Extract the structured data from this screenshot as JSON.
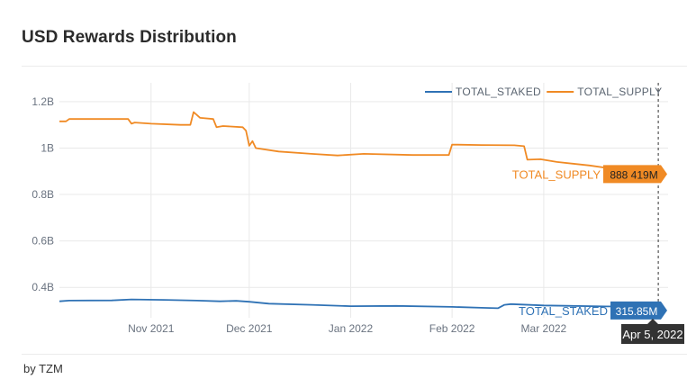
{
  "title": "USD Rewards Distribution",
  "footer": "by TZM",
  "colors": {
    "staked": "#2f72b5",
    "supply": "#f08a24",
    "grid": "#e9e9e9"
  },
  "hover": {
    "date_label": "Apr 5, 2022",
    "supply_label": "888 419M",
    "staked_label": "315.85M",
    "supply_series_label": "TOTAL_SUPPLY",
    "staked_series_label": "TOTAL_STAKED"
  },
  "chart_data": {
    "type": "line",
    "title": "USD Rewards Distribution",
    "xlabel": "",
    "ylabel": "",
    "x_range": [
      "2021-10-04",
      "2022-04-08"
    ],
    "ylim": [
      300000000.0,
      1250000000.0
    ],
    "y_ticks": [
      400000000.0,
      600000000.0,
      800000000.0,
      1000000000.0,
      1200000000.0
    ],
    "y_tick_labels": [
      "0.4B",
      "0.6B",
      "0.8B",
      "1B",
      "1.2B"
    ],
    "x_ticks": [
      "2021-11-01",
      "2021-12-01",
      "2022-01-01",
      "2022-02-01",
      "2022-03-01"
    ],
    "x_tick_labels": [
      "Nov 2021",
      "Dec 2021",
      "Jan 2022",
      "Feb 2022",
      "Mar 2022"
    ],
    "grid": true,
    "legend_position": "top-right",
    "series": [
      {
        "name": "TOTAL_STAKED",
        "points": [
          [
            "2021-10-04",
            340000000.0
          ],
          [
            "2021-10-07",
            343000000.0
          ],
          [
            "2021-10-20",
            344000000.0
          ],
          [
            "2021-10-26",
            348000000.0
          ],
          [
            "2021-11-05",
            346000000.0
          ],
          [
            "2021-11-15",
            343000000.0
          ],
          [
            "2021-11-22",
            340000000.0
          ],
          [
            "2021-11-27",
            342000000.0
          ],
          [
            "2021-12-01",
            338000000.0
          ],
          [
            "2021-12-07",
            330000000.0
          ],
          [
            "2021-12-20",
            325000000.0
          ],
          [
            "2022-01-01",
            319000000.0
          ],
          [
            "2022-01-15",
            320000000.0
          ],
          [
            "2022-02-01",
            316000000.0
          ],
          [
            "2022-02-10",
            312000000.0
          ],
          [
            "2022-02-15",
            310000000.0
          ],
          [
            "2022-02-17",
            325000000.0
          ],
          [
            "2022-02-19",
            328000000.0
          ],
          [
            "2022-03-01",
            322000000.0
          ],
          [
            "2022-03-20",
            318000000.0
          ],
          [
            "2022-04-05",
            316000000.0
          ]
        ]
      },
      {
        "name": "TOTAL_SUPPLY",
        "points": [
          [
            "2021-10-04",
            1115000000.0
          ],
          [
            "2021-10-06",
            1115000000.0
          ],
          [
            "2021-10-07",
            1125000000.0
          ],
          [
            "2021-10-25",
            1125000000.0
          ],
          [
            "2021-10-26",
            1105000000.0
          ],
          [
            "2021-10-27",
            1110000000.0
          ],
          [
            "2021-11-01",
            1105000000.0
          ],
          [
            "2021-11-10",
            1100000000.0
          ],
          [
            "2021-11-13",
            1100000000.0
          ],
          [
            "2021-11-14",
            1155000000.0
          ],
          [
            "2021-11-16",
            1130000000.0
          ],
          [
            "2021-11-20",
            1125000000.0
          ],
          [
            "2021-11-21",
            1090000000.0
          ],
          [
            "2021-11-23",
            1095000000.0
          ],
          [
            "2021-11-29",
            1090000000.0
          ],
          [
            "2021-11-30",
            1075000000.0
          ],
          [
            "2021-12-01",
            1010000000.0
          ],
          [
            "2021-12-02",
            1030000000.0
          ],
          [
            "2021-12-03",
            1000000000.0
          ],
          [
            "2021-12-10",
            985000000.0
          ],
          [
            "2021-12-20",
            975000000.0
          ],
          [
            "2021-12-28",
            968000000.0
          ],
          [
            "2022-01-05",
            975000000.0
          ],
          [
            "2022-01-20",
            970000000.0
          ],
          [
            "2022-01-31",
            970000000.0
          ],
          [
            "2022-02-01",
            1015000000.0
          ],
          [
            "2022-02-10",
            1013000000.0
          ],
          [
            "2022-02-20",
            1012000000.0
          ],
          [
            "2022-02-23",
            1008000000.0
          ],
          [
            "2022-02-24",
            950000000.0
          ],
          [
            "2022-02-28",
            952000000.0
          ],
          [
            "2022-03-05",
            940000000.0
          ],
          [
            "2022-03-15",
            925000000.0
          ],
          [
            "2022-03-25",
            905000000.0
          ],
          [
            "2022-04-05",
            888000000.0
          ]
        ]
      }
    ]
  }
}
